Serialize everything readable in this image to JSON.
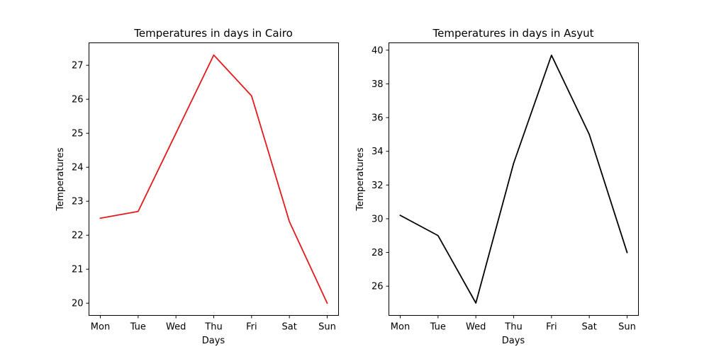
{
  "chart_data": [
    {
      "type": "line",
      "title": "Temperatures in days in Cairo",
      "xlabel": "Days",
      "ylabel": "Temperatures",
      "categories": [
        "Mon",
        "Tue",
        "Wed",
        "Thu",
        "Fri",
        "Sat",
        "Sun"
      ],
      "yticks": [
        20,
        21,
        22,
        23,
        24,
        25,
        26,
        27
      ],
      "ylim": [
        19.64,
        27.66
      ],
      "grid": false,
      "series": [
        {
          "values": [
            22.5,
            22.7,
            25.0,
            27.3,
            26.1,
            22.4,
            20.0
          ],
          "color": "#e31a1c"
        }
      ]
    },
    {
      "type": "line",
      "title": "Temperatures in days in Asyut",
      "xlabel": "Days",
      "ylabel": "Temperatures",
      "categories": [
        "Mon",
        "Tue",
        "Wed",
        "Thu",
        "Fri",
        "Sat",
        "Sun"
      ],
      "yticks": [
        26,
        28,
        30,
        32,
        34,
        36,
        38,
        40
      ],
      "ylim": [
        24.265,
        40.435
      ],
      "grid": false,
      "series": [
        {
          "values": [
            30.2,
            29.0,
            25.0,
            33.3,
            39.7,
            35.0,
            28.0
          ],
          "color": "#000000"
        }
      ]
    }
  ]
}
